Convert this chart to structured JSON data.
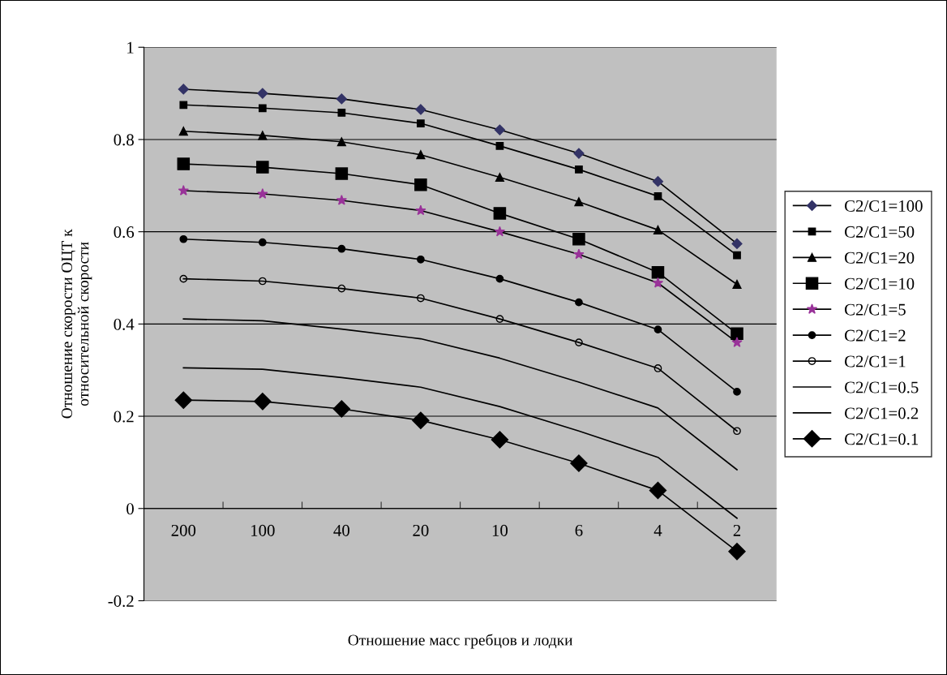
{
  "chart_data": {
    "type": "line",
    "xlabel": "Отношение масс гребцов и лодки",
    "ylabel": "Отношение скорости ОЦТ к\nотносительной скорости",
    "categories": [
      "200",
      "100",
      "40",
      "20",
      "10",
      "6",
      "4",
      "2"
    ],
    "ylim": [
      -0.2,
      1
    ],
    "yticks": [
      -0.2,
      0,
      0.2,
      0.4,
      0.6,
      0.8,
      1
    ],
    "grid": "y",
    "legend": "right",
    "line_style": "solid",
    "series": [
      {
        "name": "C2/C1=100",
        "color": "#333366",
        "marker": "diamond",
        "values": [
          0.909,
          0.9,
          0.888,
          0.865,
          0.821,
          0.77,
          0.709,
          0.574
        ]
      },
      {
        "name": "C2/C1=50",
        "color": "#000000",
        "marker": "square",
        "values": [
          0.875,
          0.868,
          0.858,
          0.835,
          0.786,
          0.735,
          0.677,
          0.549
        ]
      },
      {
        "name": "C2/C1=20",
        "color": "#000000",
        "marker": "triangle",
        "values": [
          0.818,
          0.809,
          0.795,
          0.767,
          0.718,
          0.665,
          0.604,
          0.486
        ]
      },
      {
        "name": "C2/C1=10",
        "color": "#000000",
        "marker": "square",
        "values": [
          0.747,
          0.74,
          0.726,
          0.702,
          0.64,
          0.584,
          0.512,
          0.379
        ]
      },
      {
        "name": "C2/C1=5",
        "color": "#993399",
        "marker": "star",
        "values": [
          0.689,
          0.682,
          0.668,
          0.646,
          0.6,
          0.551,
          0.489,
          0.36
        ]
      },
      {
        "name": "C2/C1=2",
        "color": "#000000",
        "marker": "circle",
        "values": [
          0.584,
          0.577,
          0.563,
          0.54,
          0.498,
          0.447,
          0.388,
          0.253
        ]
      },
      {
        "name": "C2/C1=1",
        "color": "#000000",
        "marker": "circle",
        "values": [
          0.498,
          0.493,
          0.477,
          0.456,
          0.411,
          0.36,
          0.304,
          0.168
        ]
      },
      {
        "name": "C2/C1=0.5",
        "color": "#000000",
        "marker": "none",
        "values": [
          0.411,
          0.407,
          0.389,
          0.368,
          0.326,
          0.274,
          0.218,
          0.084
        ]
      },
      {
        "name": "C2/C1=0.2",
        "color": "#000000",
        "marker": "none",
        "values": [
          0.305,
          0.302,
          0.284,
          0.263,
          0.221,
          0.168,
          0.111,
          -0.021
        ]
      },
      {
        "name": "C2/C1=0.1",
        "color": "#000000",
        "marker": "diamond",
        "values": [
          0.235,
          0.232,
          0.216,
          0.191,
          0.149,
          0.098,
          0.039,
          -0.093
        ]
      }
    ]
  }
}
